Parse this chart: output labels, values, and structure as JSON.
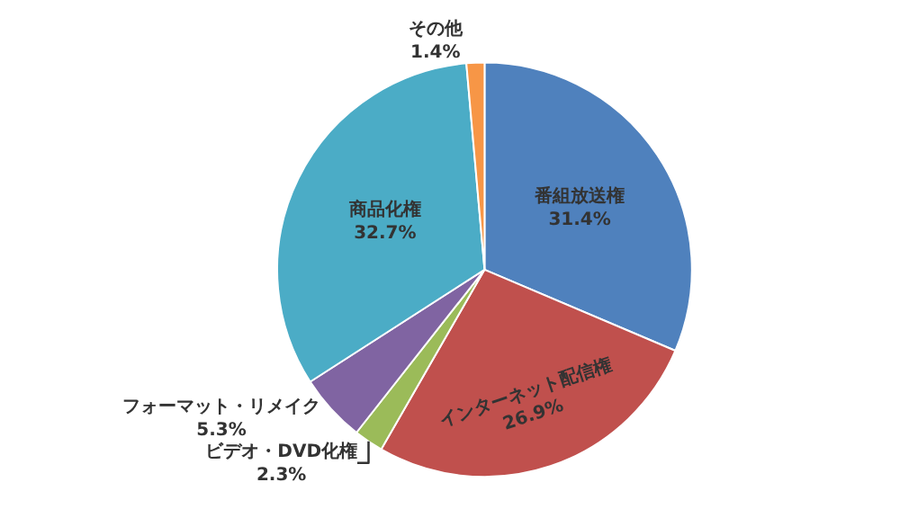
{
  "chart_data": {
    "type": "pie",
    "categories": [
      "番組放送権",
      "インターネット配信権",
      "ビデオ・DVD化権",
      "フォーマット・リメイク",
      "商品化権",
      "その他"
    ],
    "values": [
      31.4,
      26.9,
      2.3,
      5.3,
      32.7,
      1.4
    ],
    "value_labels": [
      "31.4%",
      "26.9%",
      "2.3%",
      "5.3%",
      "32.7%",
      "1.4%"
    ],
    "colors": [
      "#4f81bd",
      "#c0504d",
      "#9bbb59",
      "#8064a2",
      "#4bacc6",
      "#f79646"
    ],
    "legend": false
  }
}
